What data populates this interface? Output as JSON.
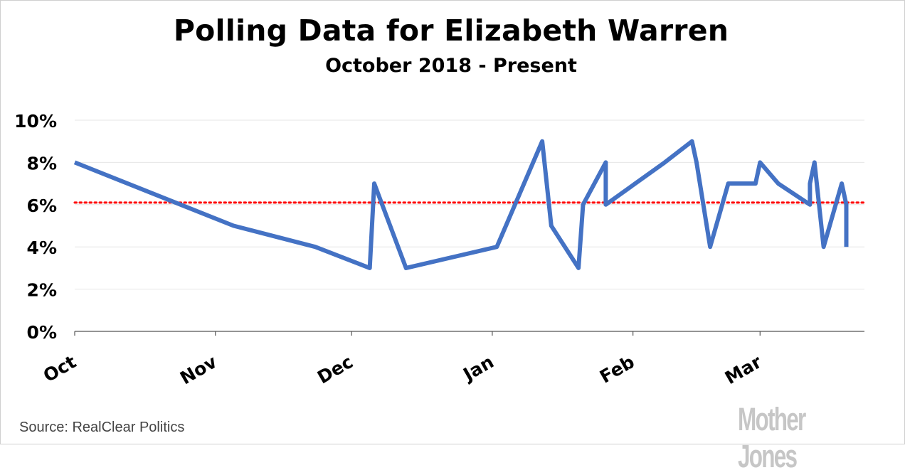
{
  "title": "Polling Data for Elizabeth Warren",
  "subtitle": "October 2018 - Present",
  "source": "Source:  RealClear Politics",
  "logo": "Mother Jones",
  "colors": {
    "series": "#4472C4",
    "average": "#FF0000",
    "grid": "#e6e6e6",
    "axis": "#555555"
  },
  "chart_data": {
    "type": "line",
    "title": "Polling Data for Elizabeth Warren",
    "subtitle": "October 2018 - Present",
    "xlabel": "",
    "ylabel": "",
    "x_tick_labels": [
      "Oct",
      "Nov",
      "Dec",
      "Jan",
      "Feb",
      "Mar"
    ],
    "x_range": [
      "2018-10-01",
      "2019-03-24"
    ],
    "ylim": [
      0,
      10
    ],
    "y_ticks": [
      0,
      2,
      4,
      6,
      8,
      10
    ],
    "y_tick_format": "percent",
    "grid": "horizontal",
    "legend": "none",
    "series": [
      {
        "x": [
          "2018-10-01",
          "2018-11-05",
          "2018-11-23",
          "2018-12-05",
          "2018-12-06",
          "2018-12-13",
          "2019-01-02",
          "2019-01-12",
          "2019-01-14",
          "2019-01-20",
          "2019-01-21",
          "2019-01-26",
          "2019-01-26",
          "2019-02-08",
          "2019-02-14",
          "2019-02-15",
          "2019-02-18",
          "2019-02-22",
          "2019-02-28",
          "2019-03-01",
          "2019-03-05",
          "2019-03-12",
          "2019-03-12",
          "2019-03-13",
          "2019-03-15",
          "2019-03-19",
          "2019-03-20",
          "2019-03-20"
        ],
        "values": [
          8,
          5,
          4,
          3,
          7,
          3,
          4,
          9,
          5,
          3,
          6,
          8,
          6,
          8,
          9,
          8,
          4,
          7,
          7,
          8,
          7,
          6,
          7,
          8,
          4,
          7,
          6,
          4
        ]
      }
    ],
    "reference_line": {
      "value": 6.1,
      "style": "dotted"
    }
  }
}
